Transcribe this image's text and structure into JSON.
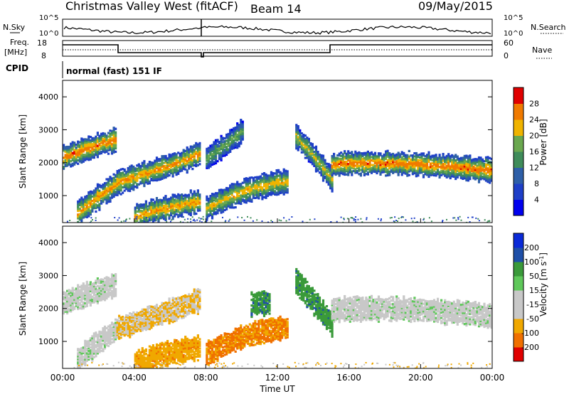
{
  "header": {
    "station": "Christmas Valley West (fitACF)",
    "beam": "Beam 14",
    "date": "09/May/2015"
  },
  "nsky_panel": {
    "left_label": "N.Sky",
    "right_label": "N.Search",
    "left_ticks": [
      "10^5",
      "10^0"
    ],
    "right_ticks": [
      "10^5",
      "10^0"
    ]
  },
  "freq_panel": {
    "left_label_1": "Freq.",
    "left_label_2": "[MHz]",
    "right_label": "Nave",
    "left_ticks": [
      "18",
      "8"
    ],
    "right_ticks": [
      "60",
      "0"
    ]
  },
  "cpid": {
    "label": "CPID",
    "value": "normal (fast) 151 IF"
  },
  "colors": {
    "power": [
      "#0000ee",
      "#1e3fc8",
      "#2e5fa8",
      "#3f8c5a",
      "#6aa84f",
      "#f0b400",
      "#f07a00",
      "#e00000"
    ],
    "velocity": [
      "#e00000",
      "#f07000",
      "#f0a800",
      "#c8c8c8",
      "#c8c8c8",
      "#5fc85a",
      "#3a9a3a",
      "#1e4fa8",
      "#0a2ad8"
    ]
  },
  "chart_data": [
    {
      "type": "heatmap",
      "title": "",
      "xlabel": "Time UT",
      "ylabel": "Slant Range [km]",
      "xticks": [
        "00:00",
        "04:00",
        "08:00",
        "12:00",
        "16:00",
        "20:00",
        "00:00"
      ],
      "xlim": [
        0,
        24
      ],
      "ylim": [
        180,
        4500
      ],
      "yticks": [
        1000,
        2000,
        3000,
        4000
      ],
      "colorbar": {
        "label": "Power [dB]",
        "ticks": [
          "4",
          "8",
          "12",
          "16",
          "20",
          "24",
          "28"
        ],
        "range": [
          0,
          32
        ]
      },
      "features": [
        {
          "t0": 0.0,
          "t1": 2.9,
          "r0": 2150,
          "r1": 2450,
          "r2": 2700,
          "peak_db": 28
        },
        {
          "t0": 0.8,
          "t1": 3.0,
          "r0": 450,
          "r1": 950,
          "r2": 1350,
          "peak_db": 26
        },
        {
          "t0": 3.0,
          "t1": 7.6,
          "r0": 1400,
          "r1": 1750,
          "r2": 2250,
          "peak_db": 26
        },
        {
          "t0": 4.0,
          "t1": 7.6,
          "r0": 350,
          "r1": 650,
          "r2": 800,
          "peak_db": 26
        },
        {
          "t0": 8.0,
          "t1": 12.5,
          "r0": 600,
          "r1": 1300,
          "r2": 1400,
          "peak_db": 24
        },
        {
          "t0": 8.0,
          "t1": 10.0,
          "r0": 2100,
          "r1": 2500,
          "r2": 2950,
          "peak_db": 18
        },
        {
          "t0": 13.0,
          "t1": 15.0,
          "r0": 2800,
          "r1": 2200,
          "r2": 1500,
          "peak_db": 22
        },
        {
          "t0": 15.0,
          "t1": 24.0,
          "r0": 1950,
          "r1": 2050,
          "r2": 1750,
          "peak_db": 28
        }
      ]
    },
    {
      "type": "heatmap",
      "title": "",
      "xlabel": "Time UT",
      "ylabel": "Slant Range [km]",
      "xticks": [
        "00:00",
        "04:00",
        "08:00",
        "12:00",
        "16:00",
        "20:00",
        "00:00"
      ],
      "xlim": [
        0,
        24
      ],
      "ylim": [
        180,
        4500
      ],
      "yticks": [
        1000,
        2000,
        3000,
        4000
      ],
      "colorbar": {
        "label": "Velocity [m s^-1]",
        "ticks": [
          "-200",
          "-100",
          "-50",
          "-15",
          "15",
          "50",
          "100",
          "200"
        ],
        "range": [
          -250,
          250
        ]
      },
      "features": [
        {
          "t0": 0.0,
          "t1": 2.9,
          "r0": 2150,
          "r1": 2450,
          "r2": 2700,
          "vel": 0
        },
        {
          "t0": 0.8,
          "t1": 3.0,
          "r0": 450,
          "r1": 950,
          "r2": 1350,
          "vel": 0
        },
        {
          "t0": 3.0,
          "t1": 7.6,
          "r0": 1400,
          "r1": 1750,
          "r2": 2250,
          "vel": -30
        },
        {
          "t0": 4.0,
          "t1": 7.6,
          "r0": 350,
          "r1": 650,
          "r2": 800,
          "vel": -60
        },
        {
          "t0": 8.0,
          "t1": 12.5,
          "r0": 600,
          "r1": 1300,
          "r2": 1400,
          "vel": -80
        },
        {
          "t0": 10.5,
          "t1": 11.5,
          "r0": 2100,
          "r1": 2200,
          "r2": 2150,
          "vel": 60
        },
        {
          "t0": 13.0,
          "t1": 15.0,
          "r0": 2800,
          "r1": 2200,
          "r2": 1500,
          "vel": 60
        },
        {
          "t0": 15.0,
          "t1": 24.0,
          "r0": 1950,
          "r1": 2050,
          "r2": 1750,
          "vel": 0
        }
      ]
    }
  ]
}
